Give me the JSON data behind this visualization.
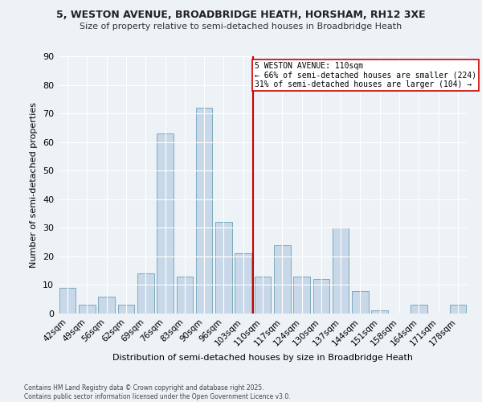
{
  "title": "5, WESTON AVENUE, BROADBRIDGE HEATH, HORSHAM, RH12 3XE",
  "subtitle": "Size of property relative to semi-detached houses in Broadbridge Heath",
  "xlabel": "Distribution of semi-detached houses by size in Broadbridge Heath",
  "ylabel": "Number of semi-detached properties",
  "footnote1": "Contains HM Land Registry data © Crown copyright and database right 2025.",
  "footnote2": "Contains public sector information licensed under the Open Government Licence v3.0.",
  "categories": [
    "42sqm",
    "49sqm",
    "56sqm",
    "62sqm",
    "69sqm",
    "76sqm",
    "83sqm",
    "90sqm",
    "96sqm",
    "103sqm",
    "110sqm",
    "117sqm",
    "124sqm",
    "130sqm",
    "137sqm",
    "144sqm",
    "151sqm",
    "158sqm",
    "164sqm",
    "171sqm",
    "178sqm"
  ],
  "values": [
    9,
    3,
    6,
    3,
    14,
    63,
    13,
    72,
    32,
    21,
    13,
    24,
    13,
    12,
    30,
    8,
    1,
    0,
    3,
    0,
    3
  ],
  "bar_color": "#c8d8e8",
  "bar_edge_color": "#7aaabb",
  "vline_color": "#cc0000",
  "annotation_text_line1": "5 WESTON AVENUE: 110sqm",
  "annotation_text_line2": "← 66% of semi-detached houses are smaller (224)",
  "annotation_text_line3": "31% of semi-detached houses are larger (104) →",
  "annotation_box_color": "#cc0000",
  "bg_color": "#edf2f7",
  "grid_color": "#ffffff",
  "ylim": [
    0,
    90
  ],
  "yticks": [
    0,
    10,
    20,
    30,
    40,
    50,
    60,
    70,
    80,
    90
  ]
}
